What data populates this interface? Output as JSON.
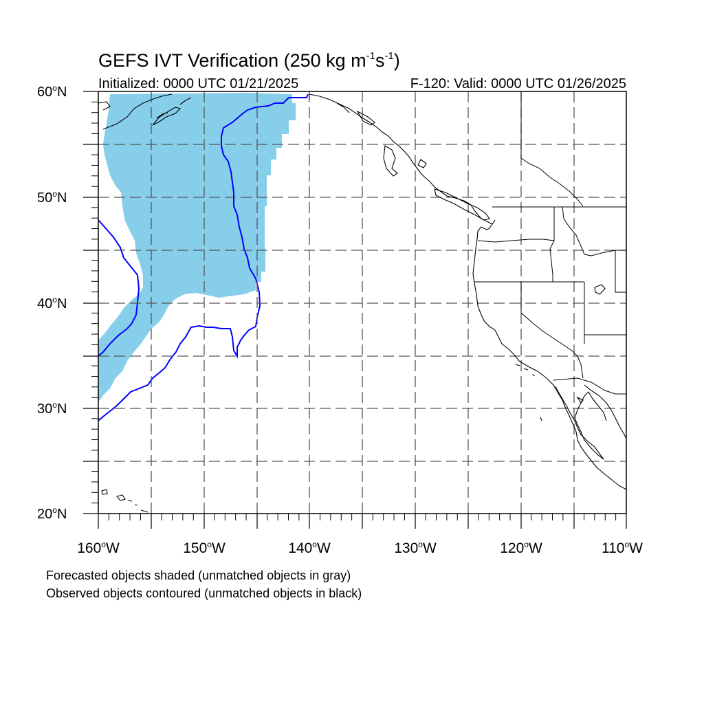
{
  "title": {
    "text_main": "GEFS IVT Verification (250 kg m",
    "exp1": "-1",
    "text_mid": "s",
    "exp2": "-1",
    "text_end": ")"
  },
  "subtitle_left": "Initialized: 0000 UTC 01/21/2025",
  "subtitle_right": "F-120: Valid: 0000 UTC 01/26/2025",
  "axes": {
    "lat_labels": [
      "60",
      "50",
      "40",
      "30",
      "20"
    ],
    "lat_suffix": "N",
    "lon_labels": [
      "160",
      "150",
      "140",
      "130",
      "120",
      "110"
    ],
    "lon_suffix": "W",
    "degree_symbol": "o"
  },
  "notes": [
    "Forecasted objects shaded (unmatched objects in gray)",
    "Observed objects contoured (unmatched objects in black)"
  ],
  "colors": {
    "forecast_fill": "#87ceeb",
    "observed_contour": "#0000ff",
    "coastline": "#000000",
    "grid": "#555555"
  },
  "map": {
    "projection": "cylindrical equidistant",
    "lon_range": [
      -160,
      -110
    ],
    "lat_range": [
      20,
      60
    ],
    "grid_lines": "dashed every 5 degrees"
  }
}
